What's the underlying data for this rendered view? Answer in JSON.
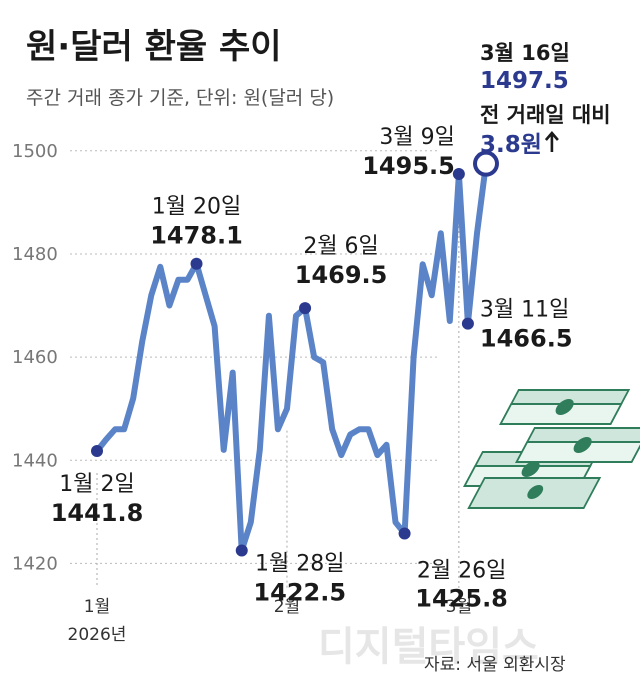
{
  "title": "원·달러 환율 추이",
  "subtitle": "주간 거래 종가 기준, 단위: 원(달러 당)",
  "source": "자료: 서울 외환시장",
  "watermark": "디지털타임스",
  "colors": {
    "line": "#5b84c8",
    "highlight": "#2b3a8f",
    "grid": "#bbbbbb"
  },
  "chart_data": {
    "type": "line",
    "ylim": [
      1410,
      1505
    ],
    "yticks": [
      1420,
      1440,
      1460,
      1480,
      1500
    ],
    "x_month_labels": [
      {
        "label": "1월",
        "sublabel": "2026년",
        "index": 0
      },
      {
        "label": "2월",
        "sublabel": "",
        "index": 21
      },
      {
        "label": "3월",
        "sublabel": "",
        "index": 40
      }
    ],
    "values": [
      1441.8,
      1444,
      1446,
      1446,
      1452,
      1463,
      1472,
      1477.5,
      1470,
      1475,
      1475,
      1478.1,
      1472,
      1466,
      1442,
      1457,
      1422.5,
      1428,
      1442,
      1468,
      1446,
      1450,
      1468,
      1469.5,
      1460,
      1459,
      1446,
      1441,
      1445,
      1446,
      1446,
      1441,
      1443,
      1428,
      1425.8,
      1460,
      1478,
      1472,
      1484,
      1467,
      1495.5,
      1466.5,
      1484,
      1497.5
    ],
    "annotations": [
      {
        "index": 0,
        "date": "1월 2일",
        "value": "1441.8"
      },
      {
        "index": 11,
        "date": "1월 20일",
        "value": "1478.1"
      },
      {
        "index": 16,
        "date": "1월 28일",
        "value": "1422.5"
      },
      {
        "index": 23,
        "date": "2월 6일",
        "value": "1469.5"
      },
      {
        "index": 34,
        "date": "2월 26일",
        "value": "1425.8"
      },
      {
        "index": 40,
        "date": "3월 9일",
        "value": "1495.5"
      },
      {
        "index": 41,
        "date": "3월 11일",
        "value": "1466.5"
      }
    ],
    "highlight": {
      "index": 43,
      "date": "3월 16일",
      "value": "1497.5",
      "change_label": "전 거래일 대비",
      "change_value": "3.8원"
    }
  }
}
